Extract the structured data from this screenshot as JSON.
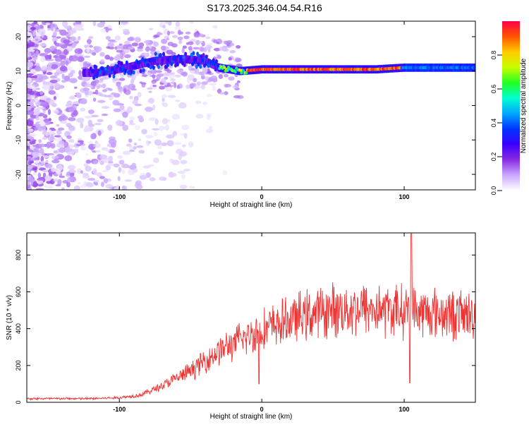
{
  "title": "S173.2025.346.04.54.R16",
  "colors": {
    "snr_line": "#ee3333",
    "axis": "#000000",
    "colormap": [
      "#ffffff",
      "#c9a8ff",
      "#8a2be2",
      "#3b00ff",
      "#0033ff",
      "#00a6ff",
      "#00ffd0",
      "#22ff22",
      "#c8ff00",
      "#ffcc00",
      "#ff5500",
      "#ff0044"
    ]
  },
  "chart_data": [
    {
      "type": "heatmap",
      "title": "S173.2025.346.04.54.R16",
      "xlabel": "Height of straight line (km)",
      "ylabel": "Frequency (Hz)",
      "xlim": [
        -165,
        150
      ],
      "ylim": [
        -24.5,
        24.5
      ],
      "x_ticks": [
        "-100",
        "0",
        "100"
      ],
      "x_tick_values": [
        -100,
        0,
        100
      ],
      "y_ticks": [
        "20",
        "10",
        "0",
        "-10",
        "-20"
      ],
      "y_tick_values": [
        20,
        10,
        0,
        -10,
        -20
      ],
      "colorbar": {
        "label": "Normalized spectral amplitude",
        "range": [
          0,
          1
        ],
        "ticks": [
          "0.0",
          "0.2",
          "0.4",
          "0.6",
          "0.8"
        ],
        "tick_values": [
          0.0,
          0.2,
          0.4,
          0.6,
          0.8
        ]
      },
      "ridge": {
        "description": "dominant frequency track",
        "points": [
          {
            "x": -115,
            "y": 9.5
          },
          {
            "x": -95,
            "y": 11
          },
          {
            "x": -75,
            "y": 13
          },
          {
            "x": -55,
            "y": 13.5
          },
          {
            "x": -40,
            "y": 13
          },
          {
            "x": -30,
            "y": 11
          },
          {
            "x": -15,
            "y": 10
          },
          {
            "x": 0,
            "y": 10.5
          },
          {
            "x": 20,
            "y": 10.5
          },
          {
            "x": 50,
            "y": 10.5
          },
          {
            "x": 80,
            "y": 10.5
          },
          {
            "x": 100,
            "y": 11
          },
          {
            "x": 150,
            "y": 11
          }
        ]
      }
    },
    {
      "type": "line",
      "xlabel": "Height of straight line (km)",
      "ylabel": "SNR (10 * v/v)",
      "xlim": [
        -165,
        150
      ],
      "ylim": [
        0,
        920
      ],
      "x_ticks": [
        "-100",
        "0",
        "100"
      ],
      "x_tick_values": [
        -100,
        0,
        100
      ],
      "y_ticks": [
        "800",
        "600",
        "400",
        "200",
        "0"
      ],
      "y_tick_values": [
        800,
        600,
        400,
        200,
        0
      ],
      "trend": {
        "x": [
          -165,
          -120,
          -100,
          -85,
          -70,
          -50,
          -30,
          -10,
          10,
          30,
          50,
          70,
          90,
          110,
          130,
          150
        ],
        "y": [
          20,
          20,
          25,
          40,
          90,
          170,
          280,
          360,
          420,
          470,
          500,
          510,
          500,
          490,
          480,
          470
        ]
      },
      "peaks": [
        {
          "x": -20,
          "y": 350
        },
        {
          "x": -12,
          "y": 380
        },
        {
          "x": 90,
          "y": 560
        },
        {
          "x": 103,
          "y": 570
        },
        {
          "x": 105,
          "y": 915
        }
      ],
      "dips": [
        {
          "x": -2,
          "y": 100
        },
        {
          "x": 104,
          "y": 105
        }
      ]
    }
  ]
}
